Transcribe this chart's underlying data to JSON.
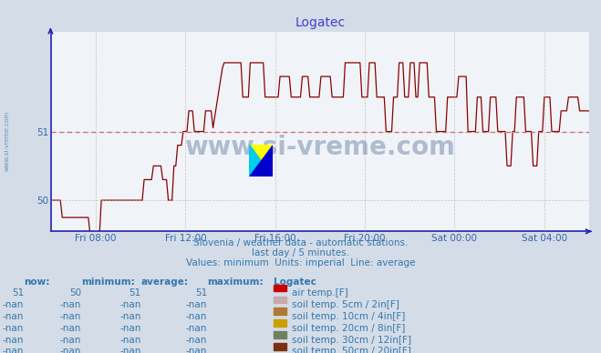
{
  "title": "Logatec",
  "title_color": "#4040cc",
  "bg_color": "#d4dce8",
  "plot_bg_color": "#f0f4f8",
  "line_color": "#880000",
  "avg_line_color": "#cc4444",
  "avg_value": 51.0,
  "grid_color": "#c8b0b0",
  "axis_color": "#2222aa",
  "tick_color": "#3366aa",
  "text_color": "#3377aa",
  "watermark_text": "www.si-vreme.com",
  "watermark_color": "#1a3a70",
  "watermark_alpha": 0.3,
  "subtitle1": "Slovenia / weather data - automatic stations.",
  "subtitle2": "last day / 5 minutes.",
  "subtitle3": "Values: minimum  Units: imperial  Line: average",
  "subtitle_color": "#3377aa",
  "yticks": [
    50,
    51
  ],
  "ylim": [
    49.55,
    52.45
  ],
  "xtick_labels": [
    "Fri 08:00",
    "Fri 12:00",
    "Fri 16:00",
    "Fri 20:00",
    "Sat 00:00",
    "Sat 04:00"
  ],
  "legend_items": [
    {
      "label": "air temp.[F]",
      "color": "#cc0000"
    },
    {
      "label": "soil temp. 5cm / 2in[F]",
      "color": "#c8a8a8"
    },
    {
      "label": "soil temp. 10cm / 4in[F]",
      "color": "#b07830"
    },
    {
      "label": "soil temp. 20cm / 8in[F]",
      "color": "#c8a000"
    },
    {
      "label": "soil temp. 30cm / 12in[F]",
      "color": "#708060"
    },
    {
      "label": "soil temp. 50cm / 20in[F]",
      "color": "#7a3010"
    }
  ],
  "table_headers": [
    "now:",
    "minimum:",
    "average:",
    "maximum:",
    "Logatec"
  ],
  "table_row1": [
    "51",
    "50",
    "51",
    "51"
  ],
  "table_rowN": [
    "-nan",
    "-nan",
    "-nan",
    "-nan"
  ],
  "left_label": "www.si-vreme.com",
  "left_label_color": "#3377aa"
}
